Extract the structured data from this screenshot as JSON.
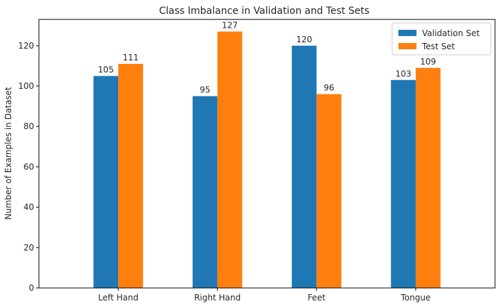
{
  "chart_data": {
    "type": "bar",
    "title": "Class Imbalance in Validation and Test Sets",
    "xlabel": "",
    "ylabel": "Number of Examples in Dataset",
    "categories": [
      "Left Hand",
      "Right Hand",
      "Feet",
      "Tongue"
    ],
    "series": [
      {
        "name": "Validation Set",
        "values": [
          105,
          95,
          120,
          103
        ],
        "color": "#1f77b4"
      },
      {
        "name": "Test Set",
        "values": [
          111,
          127,
          96,
          109
        ],
        "color": "#ff7f0e"
      }
    ],
    "ylim": [
      0,
      133
    ],
    "yticks": [
      0,
      20,
      40,
      60,
      80,
      100,
      120
    ],
    "grid": false,
    "legend_position": "top-right"
  }
}
